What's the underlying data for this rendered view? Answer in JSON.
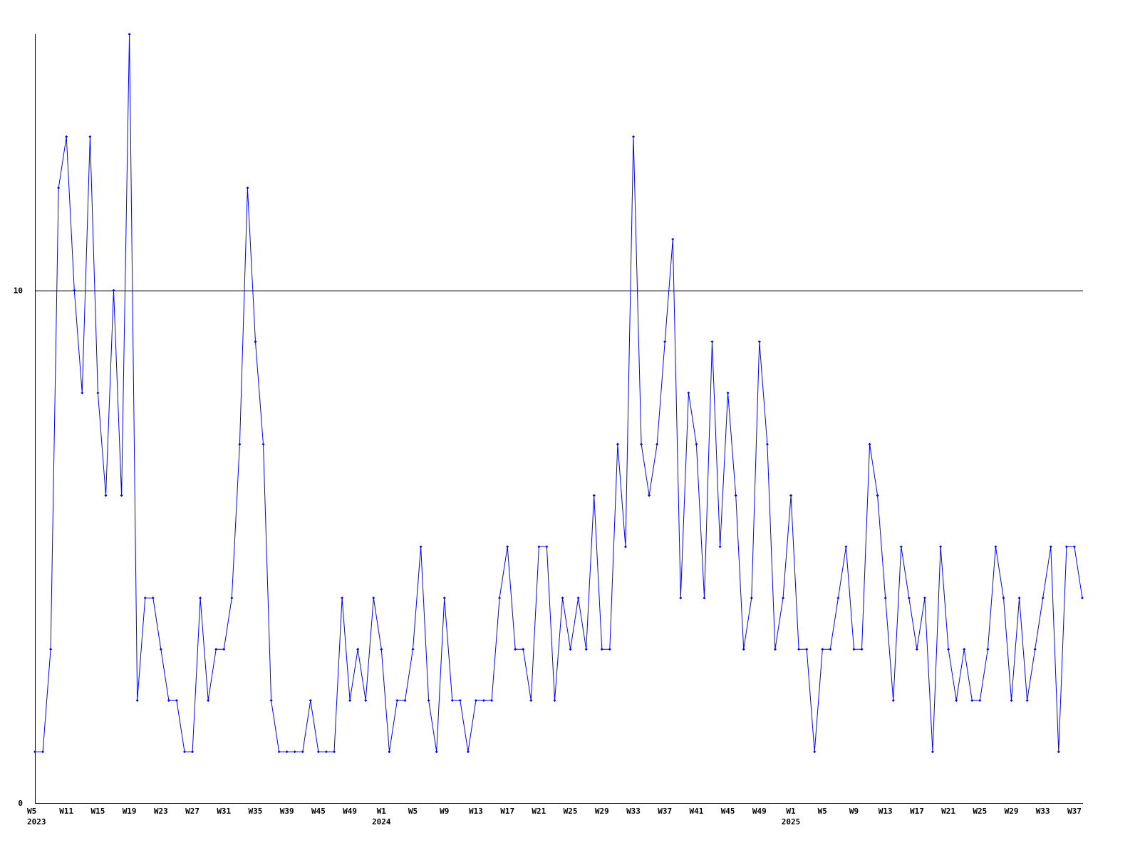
{
  "chart_data": {
    "type": "line",
    "title": "",
    "xlabel": "",
    "ylabel": "",
    "ylim": [
      0,
      15
    ],
    "y_ticks": [
      0,
      10
    ],
    "grid": "horizontal line at 10",
    "line_color": "#0000ff",
    "axis_color": "#000000",
    "x_tick_every": 4,
    "x_tick_labels": [
      "W5",
      "W11",
      "W15",
      "W19",
      "W23",
      "W27",
      "W31",
      "W35",
      "W39",
      "W45",
      "W49",
      "W1",
      "W5",
      "W9",
      "W13",
      "W17",
      "W21",
      "W25",
      "W29",
      "W33",
      "W37",
      "W41",
      "W45",
      "W49",
      "W1",
      "W5",
      "W9",
      "W13",
      "W17",
      "W21",
      "W25",
      "W29",
      "W33",
      "W37"
    ],
    "year_labels": [
      {
        "tick": 0,
        "label": "2023"
      },
      {
        "tick": 11,
        "label": "2024"
      },
      {
        "tick": 24,
        "label": "2025"
      }
    ],
    "values": [
      1,
      1,
      3,
      12,
      13,
      10,
      8,
      13,
      8,
      6,
      10,
      6,
      15,
      2,
      4,
      4,
      3,
      2,
      2,
      1,
      1,
      4,
      2,
      3,
      3,
      4,
      7,
      12,
      9,
      7,
      2,
      1,
      1,
      1,
      1,
      2,
      1,
      1,
      1,
      4,
      2,
      3,
      2,
      4,
      3,
      1,
      2,
      2,
      3,
      5,
      2,
      1,
      4,
      2,
      2,
      1,
      2,
      2,
      2,
      4,
      5,
      3,
      3,
      2,
      5,
      5,
      2,
      4,
      3,
      4,
      3,
      6,
      3,
      3,
      7,
      5,
      13,
      7,
      6,
      7,
      9,
      11,
      4,
      8,
      7,
      4,
      9,
      5,
      8,
      6,
      3,
      4,
      9,
      7,
      3,
      4,
      6,
      3,
      3,
      1,
      3,
      3,
      4,
      5,
      3,
      3,
      7,
      6,
      4,
      2,
      5,
      4,
      3,
      4,
      1,
      5,
      3,
      2,
      3,
      2,
      2,
      3,
      5,
      4,
      2,
      4,
      2,
      3,
      4,
      5,
      1,
      5,
      5,
      4
    ]
  }
}
